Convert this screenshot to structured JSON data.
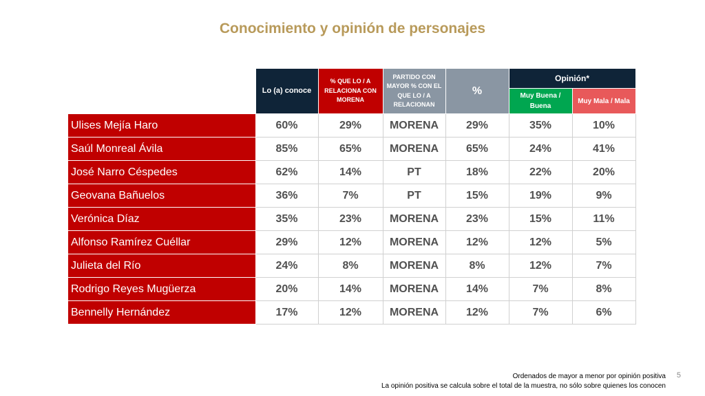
{
  "title": "Conocimiento y opinión de personajes",
  "headers": {
    "conoce": "Lo (a) conoce",
    "relaciona_morena": "% QUE LO / A RELACIONA CON MORENA",
    "partido": "PARTIDO CON MAYOR % CON EL QUE LO / A RELACIONAN",
    "pct": "%",
    "opinion": "Opinión*",
    "buena": "Muy Buena / Buena",
    "mala": "Muy Mala / Mala"
  },
  "rows": [
    {
      "name": "Ulises Mejía Haro",
      "conoce": "60%",
      "morena": "29%",
      "partido": "MORENA",
      "pct": "29%",
      "buena": "35%",
      "mala": "10%"
    },
    {
      "name": "Saúl Monreal Ávila",
      "conoce": "85%",
      "morena": "65%",
      "partido": "MORENA",
      "pct": "65%",
      "buena": "24%",
      "mala": "41%"
    },
    {
      "name": "José Narro Céspedes",
      "conoce": "62%",
      "morena": "14%",
      "partido": "PT",
      "pct": "18%",
      "buena": "22%",
      "mala": "20%"
    },
    {
      "name": "Geovana Bañuelos",
      "conoce": "36%",
      "morena": "7%",
      "partido": "PT",
      "pct": "15%",
      "buena": "19%",
      "mala": "9%"
    },
    {
      "name": "Verónica Díaz",
      "conoce": "35%",
      "morena": "23%",
      "partido": "MORENA",
      "pct": "23%",
      "buena": "15%",
      "mala": "11%"
    },
    {
      "name": "Alfonso Ramírez Cuéllar",
      "conoce": "29%",
      "morena": "12%",
      "partido": "MORENA",
      "pct": "12%",
      "buena": "12%",
      "mala": "5%"
    },
    {
      "name": "Julieta del Río",
      "conoce": "24%",
      "morena": "8%",
      "partido": "MORENA",
      "pct": "8%",
      "buena": "12%",
      "mala": "7%"
    },
    {
      "name": "Rodrigo Reyes Mugüerza",
      "conoce": "20%",
      "morena": "14%",
      "partido": "MORENA",
      "pct": "14%",
      "buena": "7%",
      "mala": "8%"
    },
    {
      "name": "Bennelly Hernández",
      "conoce": "17%",
      "morena": "12%",
      "partido": "MORENA",
      "pct": "12%",
      "buena": "7%",
      "mala": "6%"
    }
  ],
  "footer": {
    "line1": "Ordenados de mayor a menor por opinión positiva",
    "line2": "La opinión positiva se calcula sobre el total de la muestra, no sólo sobre quienes los conocen"
  },
  "page_number": "5"
}
